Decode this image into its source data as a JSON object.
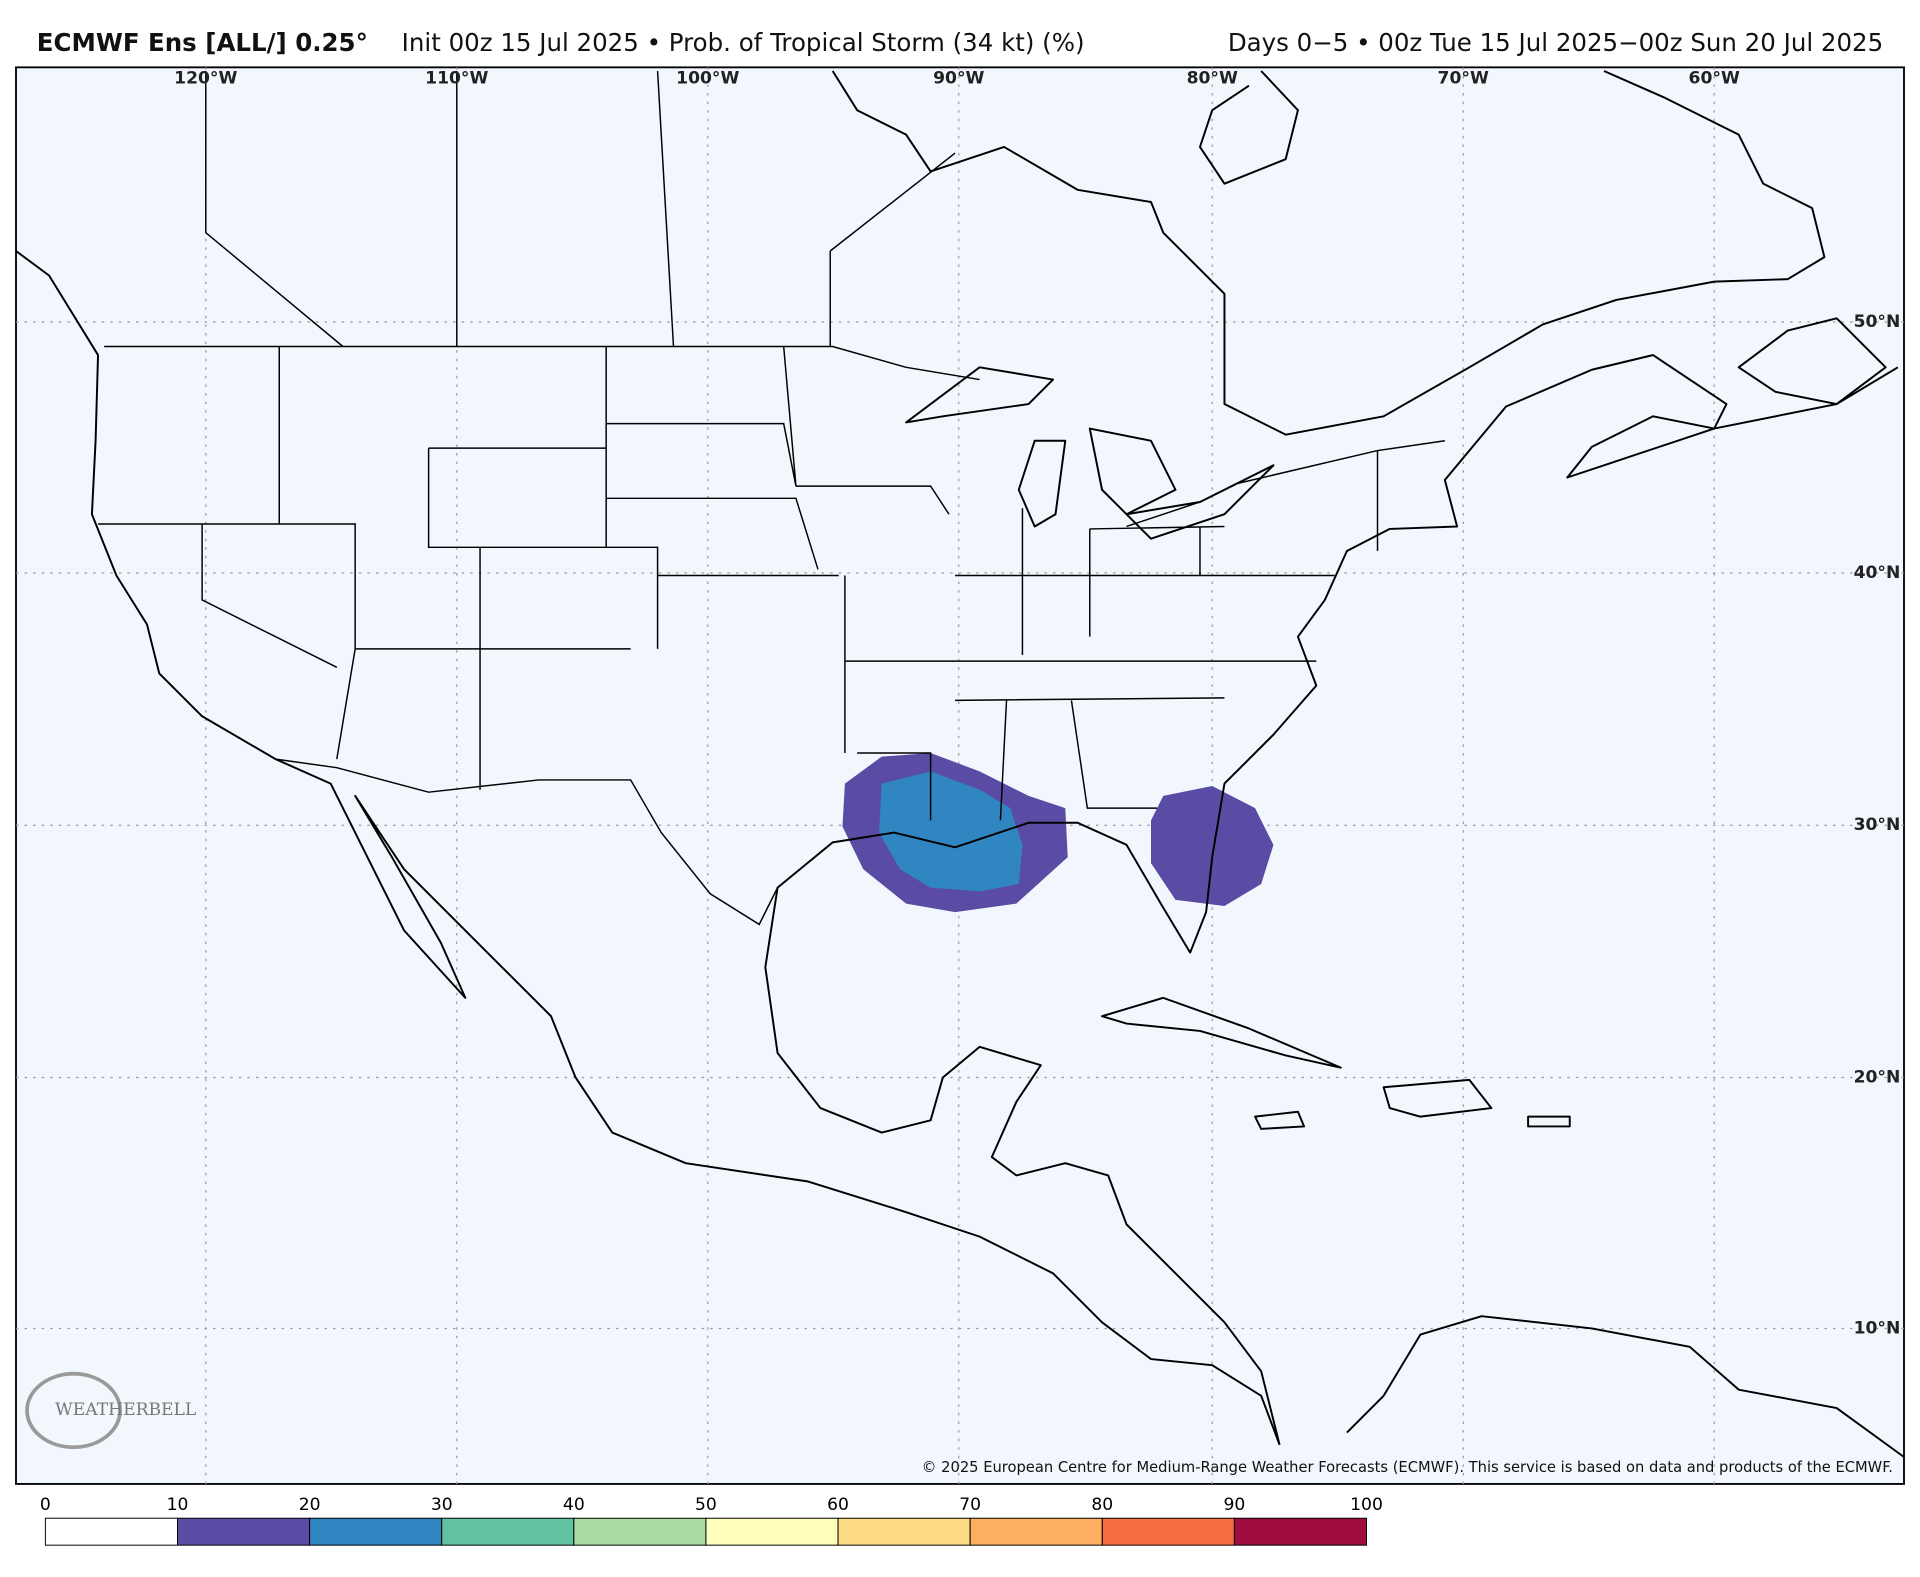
{
  "header": {
    "title_model": "ECMWF Ens [ALL/] 0.25°",
    "title_rest": "Init 00z 15 Jul 2025 • Prob. of Tropical Storm (34 kt) (%)",
    "valid_range": "Days 0−5 • 00z Tue 15 Jul 2025−00z Sun 20 Jul 2025"
  },
  "map": {
    "lon_labels": [
      "120°W",
      "110°W",
      "100°W",
      "90°W",
      "80°W",
      "70°W",
      "60°W"
    ],
    "lat_labels": [
      "50°N",
      "40°N",
      "30°N",
      "20°N",
      "10°N"
    ],
    "copyright": "© 2025 European Centre for Medium-Range Weather Forecasts (ECMWF). This service is based on data and products of the ECMWF.",
    "logo": "WEATHERBELL"
  },
  "colorbar": {
    "ticks": [
      0,
      10,
      20,
      30,
      40,
      50,
      60,
      70,
      80,
      90,
      100
    ],
    "colors": [
      "#ffffff",
      "#5a4ca4",
      "#2f86c0",
      "#63c2a4",
      "#aadca2",
      "#fefdbc",
      "#fddb84",
      "#fcae61",
      "#f46d43",
      "#a00c3e"
    ]
  }
}
